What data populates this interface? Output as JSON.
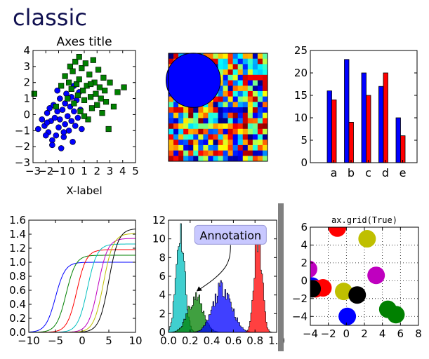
{
  "suptitle": "classic",
  "colors": {
    "blue": "#0000ff",
    "green": "#008000",
    "red": "#ff0000",
    "cyan": "#00bfbf",
    "magenta": "#bf00bf",
    "olive": "#bfbf00",
    "black": "#000000",
    "annotation_fill": "#c8c8ff",
    "annotation_edge": "#9a9ad8",
    "slider": "#808080"
  },
  "chart_data": [
    {
      "type": "scatter",
      "title": "Axes title",
      "xlabel": "X-label",
      "ylabel": "",
      "xlim": [
        -3,
        5
      ],
      "ylim": [
        -3,
        4
      ],
      "xticks": [
        "−3",
        "−2",
        "−1",
        "0",
        "1",
        "2",
        "3",
        "4",
        "5"
      ],
      "yticks": [
        "−3",
        "−2",
        "−1",
        "0",
        "1",
        "2",
        "3",
        "4"
      ],
      "series": [
        {
          "color": "blue",
          "marker": "circle",
          "points": [
            [
              -2.6,
              -0.9
            ],
            [
              -2.3,
              -0.3
            ],
            [
              -2.1,
              -0.7
            ],
            [
              -1.9,
              0.1
            ],
            [
              -1.8,
              -1.1
            ],
            [
              -1.7,
              0.4
            ],
            [
              -1.6,
              -0.4
            ],
            [
              -1.5,
              -1.6
            ],
            [
              -1.4,
              0.6
            ],
            [
              -1.3,
              -0.2
            ],
            [
              -1.2,
              -1.3
            ],
            [
              -1.1,
              0.2
            ],
            [
              -1.0,
              -0.8
            ],
            [
              -0.9,
              1.0
            ],
            [
              -0.9,
              -0.3
            ],
            [
              -0.8,
              -2.1
            ],
            [
              -0.7,
              0.3
            ],
            [
              -0.6,
              -1.4
            ],
            [
              -0.5,
              0.7
            ],
            [
              -0.5,
              -0.6
            ],
            [
              -0.4,
              1.3
            ],
            [
              -0.3,
              -0.1
            ],
            [
              -0.2,
              -1.0
            ],
            [
              -0.1,
              0.5
            ],
            [
              0.0,
              -0.4
            ],
            [
              0.0,
              1.1
            ],
            [
              0.1,
              -1.7
            ],
            [
              0.2,
              0.2
            ],
            [
              0.3,
              -0.7
            ],
            [
              0.4,
              0.9
            ],
            [
              0.5,
              -0.2
            ],
            [
              0.6,
              1.4
            ],
            [
              0.7,
              0.3
            ],
            [
              0.8,
              -0.9
            ],
            [
              -1.5,
              -1.9
            ],
            [
              -2.0,
              -1.3
            ],
            [
              -1.1,
              1.5
            ],
            [
              0.2,
              1.8
            ],
            [
              -0.6,
              -1.1
            ],
            [
              -1.9,
              -0.5
            ]
          ]
        },
        {
          "color": "green",
          "marker": "square",
          "points": [
            [
              -2.9,
              1.3
            ],
            [
              -1.2,
              0.5
            ],
            [
              -0.8,
              1.8
            ],
            [
              -0.5,
              2.4
            ],
            [
              -0.3,
              1.0
            ],
            [
              -0.1,
              3.0
            ],
            [
              0.0,
              1.6
            ],
            [
              0.1,
              2.7
            ],
            [
              0.2,
              0.7
            ],
            [
              0.3,
              3.3
            ],
            [
              0.4,
              1.9
            ],
            [
              0.5,
              1.2
            ],
            [
              0.6,
              2.2
            ],
            [
              0.7,
              0.2
            ],
            [
              0.8,
              2.9
            ],
            [
              0.9,
              1.5
            ],
            [
              1.0,
              0.9
            ],
            [
              1.1,
              3.2
            ],
            [
              1.2,
              1.8
            ],
            [
              1.3,
              -0.3
            ],
            [
              1.4,
              2.5
            ],
            [
              1.5,
              1.1
            ],
            [
              1.6,
              0.4
            ],
            [
              1.7,
              3.4
            ],
            [
              1.8,
              2.0
            ],
            [
              1.9,
              1.3
            ],
            [
              2.0,
              0.6
            ],
            [
              2.1,
              2.8
            ],
            [
              2.2,
              1.7
            ],
            [
              2.3,
              1.0
            ],
            [
              2.4,
              0.1
            ],
            [
              2.5,
              2.3
            ],
            [
              2.6,
              1.5
            ],
            [
              2.7,
              0.8
            ],
            [
              2.9,
              -0.9
            ],
            [
              3.0,
              2.0
            ],
            [
              3.3,
              0.5
            ],
            [
              3.6,
              1.4
            ],
            [
              4.1,
              1.7
            ],
            [
              0.6,
              3.6
            ],
            [
              -0.2,
              2.0
            ],
            [
              1.5,
              1.9
            ],
            [
              1.0,
              -0.1
            ]
          ]
        }
      ]
    },
    {
      "type": "heatmap",
      "rows": 20,
      "cols": 20,
      "value_range": [
        0,
        1
      ],
      "colormap": "jet",
      "overlay": {
        "shape": "circle",
        "center": [
          5,
          5
        ],
        "radius": 5.5,
        "color": "blue"
      }
    },
    {
      "type": "bar",
      "categories": [
        "a",
        "b",
        "c",
        "d",
        "e"
      ],
      "series": [
        {
          "color": "blue",
          "values": [
            16,
            23,
            20,
            17,
            10
          ]
        },
        {
          "color": "red",
          "values": [
            14,
            9,
            15,
            20,
            6
          ]
        }
      ],
      "ylim": [
        0,
        25
      ],
      "yticks": [
        "0",
        "5",
        "10",
        "15",
        "20",
        "25"
      ]
    },
    {
      "type": "line",
      "xlim": [
        -10,
        10
      ],
      "ylim": [
        0,
        1.6
      ],
      "xticks": [
        "−10",
        "−5",
        "0",
        "5",
        "10"
      ],
      "yticks": [
        "0.0",
        "0.2",
        "0.4",
        "0.6",
        "0.8",
        "1.0",
        "1.2",
        "1.4",
        "1.6"
      ],
      "series": [
        {
          "color": "blue",
          "center": -5,
          "amplitude": 1.0
        },
        {
          "color": "green",
          "center": -3,
          "amplitude": 1.1
        },
        {
          "color": "red",
          "center": -1,
          "amplitude": 1.18
        },
        {
          "color": "cyan",
          "center": 1,
          "amplitude": 1.26
        },
        {
          "color": "magenta",
          "center": 3,
          "amplitude": 1.34
        },
        {
          "color": "olive",
          "center": 4,
          "amplitude": 1.41
        },
        {
          "color": "black",
          "center": 5,
          "amplitude": 1.48
        }
      ]
    },
    {
      "type": "area",
      "xlim": [
        0,
        1
      ],
      "ylim": [
        0,
        12
      ],
      "xticks": [
        "0.0",
        "0.2",
        "0.4",
        "0.6",
        "0.8",
        "1.0"
      ],
      "yticks": [
        "0",
        "2",
        "4",
        "6",
        "8",
        "10",
        "12"
      ],
      "annotation": {
        "text": "Annotation",
        "point": [
          0.26,
          4.4
        ],
        "text_at": [
          0.58,
          10.4
        ]
      },
      "series": [
        {
          "color": "cyan",
          "peak": 10.8,
          "center": 0.11,
          "width": 0.04
        },
        {
          "color": "green",
          "peak": 3.8,
          "center": 0.25,
          "width": 0.07
        },
        {
          "color": "blue",
          "peak": 4.8,
          "center": 0.5,
          "width": 0.085
        },
        {
          "color": "red",
          "peak": 10.5,
          "center": 0.83,
          "width": 0.035
        }
      ]
    },
    {
      "type": "scatter",
      "title": "ax.grid(True)",
      "xlim": [
        -4,
        8
      ],
      "ylim": [
        -5,
        6
      ],
      "xticks": [
        "−4",
        "−2",
        "0",
        "2",
        "4",
        "6",
        "8"
      ],
      "yticks": [
        "−4",
        "−2",
        "0",
        "2",
        "4",
        "6"
      ],
      "grid": true,
      "points": [
        {
          "x": -1.0,
          "y": 5.9,
          "color": "red"
        },
        {
          "x": 2.3,
          "y": 4.7,
          "color": "olive"
        },
        {
          "x": -4.2,
          "y": 1.3,
          "color": "magenta"
        },
        {
          "x": 3.3,
          "y": 0.6,
          "color": "magenta"
        },
        {
          "x": -3.8,
          "y": -0.6,
          "color": "blue"
        },
        {
          "x": -2.6,
          "y": -0.8,
          "color": "red"
        },
        {
          "x": -3.4,
          "y": -0.9,
          "color": "red"
        },
        {
          "x": -3.8,
          "y": -0.9,
          "color": "black"
        },
        {
          "x": -0.3,
          "y": -1.2,
          "color": "olive"
        },
        {
          "x": 1.2,
          "y": -1.6,
          "color": "black"
        },
        {
          "x": 4.6,
          "y": -3.2,
          "color": "green"
        },
        {
          "x": 5.5,
          "y": -3.8,
          "color": "green"
        },
        {
          "x": 0.1,
          "y": -4.0,
          "color": "blue"
        }
      ]
    }
  ]
}
